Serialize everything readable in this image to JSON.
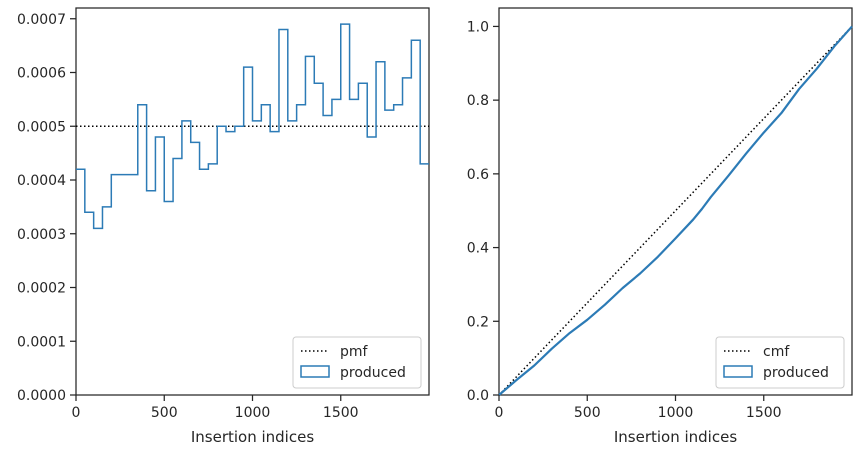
{
  "colors": {
    "series": "#2c7bb6",
    "reference": "#000000",
    "frame": "#262626"
  },
  "chart_data": [
    {
      "type": "step",
      "xlabel": "Insertion indices",
      "ylabel": "",
      "xlim": [
        0,
        2000
      ],
      "ylim": [
        0,
        0.00072
      ],
      "xticks": [
        "0",
        "500",
        "1000",
        "1500"
      ],
      "xtick_values": [
        0,
        500,
        1000,
        1500
      ],
      "yticks": [
        "0.0000",
        "0.0001",
        "0.0002",
        "0.0003",
        "0.0004",
        "0.0005",
        "0.0006",
        "0.0007"
      ],
      "ytick_values": [
        0,
        0.0001,
        0.0002,
        0.0003,
        0.0004,
        0.0005,
        0.0006,
        0.0007
      ],
      "reference": {
        "name": "pmf",
        "value": 0.0005,
        "style": "dotted"
      },
      "series": [
        {
          "name": "produced",
          "bin_edges": [
            0,
            50,
            100,
            150,
            200,
            250,
            300,
            350,
            400,
            450,
            500,
            550,
            600,
            650,
            700,
            750,
            800,
            850,
            900,
            950,
            1000,
            1050,
            1100,
            1150,
            1200,
            1250,
            1300,
            1350,
            1400,
            1450,
            1500,
            1550,
            1600,
            1650,
            1700,
            1750,
            1800,
            1850,
            1900,
            1950,
            2000
          ],
          "values": [
            0.00042,
            0.00034,
            0.00031,
            0.00035,
            0.00041,
            0.00041,
            0.00041,
            0.00054,
            0.00038,
            0.00048,
            0.00036,
            0.00044,
            0.00051,
            0.00047,
            0.00042,
            0.00043,
            0.0005,
            0.00049,
            0.0005,
            0.00061,
            0.00051,
            0.00054,
            0.00049,
            0.00068,
            0.00051,
            0.00054,
            0.00063,
            0.00058,
            0.00052,
            0.00055,
            0.00069,
            0.00055,
            0.00058,
            0.00048,
            0.00062,
            0.00053,
            0.00054,
            0.00059,
            0.00066,
            0.00043
          ]
        }
      ],
      "legend": {
        "placement": "lower-right",
        "entries": [
          "pmf",
          "produced"
        ]
      },
      "grid": false
    },
    {
      "type": "line",
      "xlabel": "Insertion indices",
      "ylabel": "",
      "xlim": [
        0,
        2000
      ],
      "ylim": [
        0,
        1.05
      ],
      "xticks": [
        "0",
        "500",
        "1000",
        "1500"
      ],
      "xtick_values": [
        0,
        500,
        1000,
        1500
      ],
      "yticks": [
        "0.0",
        "0.2",
        "0.4",
        "0.6",
        "0.8",
        "1.0"
      ],
      "ytick_values": [
        0,
        0.2,
        0.4,
        0.6,
        0.8,
        1.0
      ],
      "reference": {
        "name": "cmf",
        "x": [
          0,
          2000
        ],
        "y": [
          0,
          1.0
        ],
        "style": "dotted"
      },
      "series": [
        {
          "name": "produced",
          "x": [
            0,
            100,
            200,
            300,
            400,
            500,
            600,
            700,
            800,
            900,
            1000,
            1100,
            1150,
            1200,
            1300,
            1400,
            1500,
            1600,
            1700,
            1800,
            1900,
            2000
          ],
          "y": [
            0,
            0.041,
            0.08,
            0.126,
            0.168,
            0.204,
            0.245,
            0.29,
            0.33,
            0.375,
            0.425,
            0.476,
            0.505,
            0.537,
            0.595,
            0.655,
            0.712,
            0.765,
            0.83,
            0.885,
            0.946,
            1.0
          ]
        }
      ],
      "legend": {
        "placement": "lower-right",
        "entries": [
          "cmf",
          "produced"
        ]
      },
      "grid": false
    }
  ]
}
